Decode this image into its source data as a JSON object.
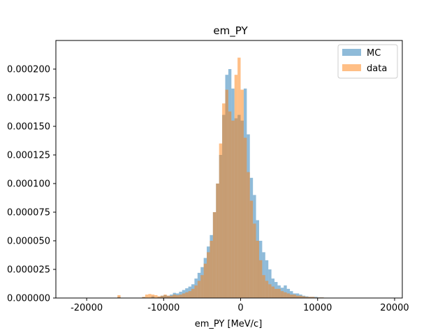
{
  "chart_data": {
    "type": "bar",
    "title": "em_PY",
    "xlabel": "em_PY [MeV/c]",
    "ylabel": "",
    "xlim": [
      -24000,
      21000
    ],
    "ylim": [
      0,
      0.000225
    ],
    "x_ticks": [
      -20000,
      -10000,
      0,
      10000,
      20000
    ],
    "y_ticks": [
      0,
      2.5e-05,
      5e-05,
      7.5e-05,
      0.0001,
      0.000125,
      0.00015,
      0.000175,
      0.0002
    ],
    "y_tick_labels": [
      "0.000000",
      "0.000025",
      "0.000050",
      "0.000075",
      "0.000100",
      "0.000125",
      "0.000150",
      "0.000175",
      "0.000200"
    ],
    "legend_position": "top-right",
    "bin_edges_start": -16000,
    "bin_width": 400,
    "series": [
      {
        "name": "MC",
        "color": "#1f77b4",
        "alpha": 0.5,
        "values": [
          1e-06,
          0,
          0,
          0,
          0,
          0,
          0,
          0,
          8e-07,
          0,
          0,
          1.5e-06,
          0,
          1e-06,
          2e-06,
          2.5e-06,
          2e-06,
          3e-06,
          4.5e-06,
          4e-06,
          5.5e-06,
          7e-06,
          8.5e-06,
          1e-05,
          1.2e-05,
          1.7e-05,
          2.2e-05,
          2.7e-05,
          3.5e-05,
          4.5e-05,
          5.5e-05,
          7.5e-05,
          0.0001,
          0.000125,
          0.00016,
          0.000195,
          0.0002,
          0.000183,
          0.000157,
          0.00016,
          0.000155,
          0.000183,
          0.000143,
          0.000105,
          9e-05,
          6.8e-05,
          5e-05,
          4e-05,
          3.3e-05,
          2.5e-05,
          1.7e-05,
          1.4e-05,
          1.1e-05,
          9e-06,
          1.1e-05,
          8e-06,
          6e-06,
          4e-06,
          4e-06,
          3e-06,
          2e-06,
          1.5e-06,
          1e-06,
          1e-06,
          1e-06,
          5e-07,
          5e-07
        ]
      },
      {
        "name": "data",
        "color": "#ff7f0e",
        "alpha": 0.5,
        "values": [
          2.5e-06,
          0,
          0,
          0,
          0,
          0,
          0,
          0,
          1e-06,
          3e-06,
          3.5e-06,
          3e-06,
          2.5e-06,
          1.5e-06,
          2e-06,
          3e-06,
          2e-06,
          2e-06,
          3e-06,
          2.5e-06,
          3e-06,
          4e-06,
          5e-06,
          6e-06,
          8e-06,
          1.1e-05,
          1.5e-05,
          2e-05,
          3e-05,
          4e-05,
          5e-05,
          7.5e-05,
          0.0001,
          0.000135,
          0.00017,
          0.000182,
          0.000163,
          0.000155,
          0.000195,
          0.00021,
          0.000182,
          0.00014,
          0.00011,
          8.5e-05,
          6.5e-05,
          5e-05,
          3.3e-05,
          2e-05,
          1.5e-05,
          1.2e-05,
          1e-05,
          8e-06,
          8e-06,
          6e-06,
          5e-06,
          4e-06,
          3e-06,
          3e-06,
          2e-06,
          2e-06,
          1.5e-06,
          1e-06,
          1e-06,
          1e-06,
          5e-07,
          5e-07,
          5e-07
        ]
      }
    ]
  }
}
